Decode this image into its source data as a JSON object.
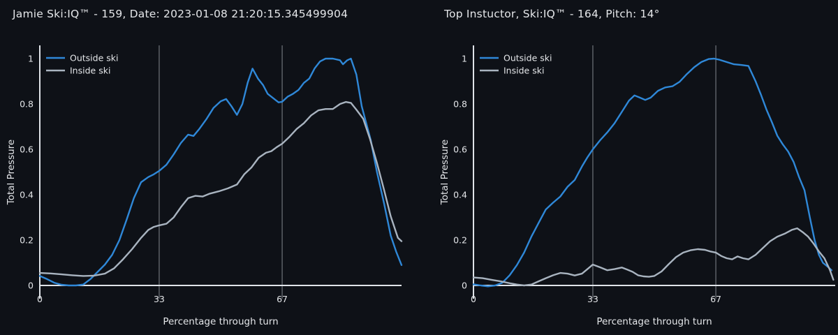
{
  "page": {
    "background": "#0e1117"
  },
  "colors": {
    "outside_ski": "#2f88d8",
    "inside_ski": "#a9b4c0",
    "axis_line": "#dfe3e8",
    "gridline": "#70747b",
    "label_text": "#e4e6e9"
  },
  "chart_data": [
    {
      "type": "line",
      "title": "Jamie Ski:IQ™ - 159, Date: 2023-01-08 21:20:15.345499904",
      "xlabel": "Percentage through turn",
      "ylabel": "Total Pressure",
      "xlim": [
        0,
        100
      ],
      "ylim": [
        0,
        1.06
      ],
      "grid": "vertical-only",
      "legend_position": "top-left",
      "xticks": [
        {
          "value": 0,
          "label": "0"
        },
        {
          "value": 33,
          "label": "33"
        },
        {
          "value": 67,
          "label": "67"
        }
      ],
      "yticks": [
        {
          "value": 0,
          "label": "0"
        },
        {
          "value": 0.2,
          "label": "0.2"
        },
        {
          "value": 0.4,
          "label": "0.4"
        },
        {
          "value": 0.6,
          "label": "0.6"
        },
        {
          "value": 0.8,
          "label": "0.8"
        },
        {
          "value": 1,
          "label": "1"
        }
      ],
      "series": [
        {
          "name": "Outside ski",
          "color": "#2f88d8",
          "x": [
            0,
            2,
            4,
            6,
            8,
            10,
            12,
            14,
            16,
            18,
            20,
            22,
            24,
            26,
            28,
            30,
            31.5,
            33,
            35,
            37,
            39,
            41,
            42.5,
            44,
            46,
            48,
            50,
            51.5,
            53,
            54.5,
            56,
            57.5,
            58.8,
            60.3,
            61.7,
            63,
            64.5,
            66,
            67,
            68.5,
            70,
            71.5,
            73,
            74.5,
            76,
            77.5,
            79,
            81,
            83,
            83.8,
            85,
            86,
            87.5,
            89,
            90.5,
            91.5,
            93.2,
            95.2,
            97,
            98.5,
            100
          ],
          "y": [
            0.042,
            0.028,
            0.012,
            0.003,
            0,
            0,
            0.004,
            0.028,
            0.06,
            0.092,
            0.135,
            0.2,
            0.29,
            0.385,
            0.455,
            0.478,
            0.49,
            0.505,
            0.532,
            0.578,
            0.628,
            0.665,
            0.659,
            0.688,
            0.732,
            0.782,
            0.812,
            0.822,
            0.79,
            0.752,
            0.8,
            0.895,
            0.956,
            0.912,
            0.884,
            0.845,
            0.826,
            0.807,
            0.81,
            0.832,
            0.845,
            0.862,
            0.893,
            0.912,
            0.958,
            0.988,
            1,
            1,
            0.993,
            0.975,
            0.993,
            1,
            0.93,
            0.79,
            0.7,
            0.64,
            0.5,
            0.36,
            0.22,
            0.15,
            0.09
          ]
        },
        {
          "name": "Inside ski",
          "color": "#a9b4c0",
          "x": [
            0,
            3,
            6,
            9,
            12,
            15,
            18,
            20.5,
            23,
            25.5,
            28,
            30,
            31.5,
            33,
            35,
            37,
            39,
            41,
            43,
            45,
            47,
            49.5,
            52,
            54.5,
            56.5,
            58.5,
            60.5,
            62.5,
            64,
            65.5,
            67,
            69,
            71,
            73,
            75,
            77,
            79,
            81,
            83,
            84.6,
            86,
            87.5,
            89.4,
            91.3,
            93.2,
            95.2,
            97,
            99,
            100
          ],
          "y": [
            0.055,
            0.053,
            0.049,
            0.045,
            0.042,
            0.043,
            0.052,
            0.075,
            0.115,
            0.16,
            0.21,
            0.245,
            0.258,
            0.265,
            0.272,
            0.3,
            0.345,
            0.385,
            0.395,
            0.392,
            0.405,
            0.415,
            0.428,
            0.445,
            0.49,
            0.52,
            0.563,
            0.585,
            0.592,
            0.61,
            0.625,
            0.655,
            0.69,
            0.715,
            0.75,
            0.772,
            0.778,
            0.778,
            0.8,
            0.809,
            0.805,
            0.775,
            0.735,
            0.645,
            0.54,
            0.42,
            0.305,
            0.21,
            0.195
          ]
        }
      ]
    },
    {
      "type": "line",
      "title": "Top Instuctor, Ski:IQ™ - 164, Pitch: 14°",
      "xlabel": "Percentage through turn",
      "ylabel": "Total Pressure",
      "xlim": [
        0,
        100
      ],
      "ylim": [
        0,
        1.06
      ],
      "grid": "vertical-only",
      "legend_position": "top-left",
      "xticks": [
        {
          "value": 0,
          "label": "0"
        },
        {
          "value": 33,
          "label": "33"
        },
        {
          "value": 67,
          "label": "67"
        }
      ],
      "yticks": [
        {
          "value": 0,
          "label": "0"
        },
        {
          "value": 0.2,
          "label": "0.2"
        },
        {
          "value": 0.4,
          "label": "0.4"
        },
        {
          "value": 0.6,
          "label": "0.6"
        },
        {
          "value": 0.8,
          "label": "0.8"
        },
        {
          "value": 1,
          "label": "1"
        }
      ],
      "series": [
        {
          "name": "Outside ski",
          "color": "#2f88d8",
          "x": [
            0,
            2,
            4,
            6,
            8,
            10,
            12,
            14,
            16,
            18,
            20,
            22,
            24,
            26,
            28,
            30,
            31.5,
            33,
            35,
            37,
            39,
            41,
            43,
            44.5,
            46,
            47.5,
            49,
            51,
            53,
            55,
            57,
            59,
            61,
            63,
            65,
            66.5,
            68,
            70,
            72,
            74,
            76,
            78,
            79.5,
            81,
            82.5,
            84,
            85.5,
            87,
            88.5,
            90,
            91.5,
            93,
            94.3,
            95.5,
            96.6,
            98,
            99
          ],
          "y": [
            0.005,
            0,
            -0.004,
            0,
            0.012,
            0.045,
            0.09,
            0.145,
            0.215,
            0.275,
            0.335,
            0.365,
            0.392,
            0.435,
            0.465,
            0.525,
            0.565,
            0.6,
            0.64,
            0.675,
            0.715,
            0.765,
            0.815,
            0.838,
            0.828,
            0.818,
            0.828,
            0.858,
            0.873,
            0.878,
            0.898,
            0.932,
            0.962,
            0.985,
            0.998,
            1,
            0.995,
            0.985,
            0.975,
            0.972,
            0.968,
            0.9,
            0.84,
            0.775,
            0.72,
            0.66,
            0.622,
            0.59,
            0.545,
            0.478,
            0.42,
            0.3,
            0.2,
            0.135,
            0.1,
            0.082,
            0.067
          ]
        },
        {
          "name": "Inside ski",
          "color": "#a9b4c0",
          "x": [
            0,
            2.5,
            5,
            7.5,
            10,
            12,
            14,
            16,
            18,
            20,
            22,
            24,
            26,
            28,
            30,
            31.5,
            33,
            35,
            37,
            39,
            41,
            42.5,
            44,
            45.5,
            47,
            48.5,
            50,
            52,
            54,
            56,
            58,
            60,
            62,
            64,
            65.5,
            67,
            68.5,
            70,
            71.5,
            73,
            74.5,
            76,
            78,
            80,
            82,
            84,
            86,
            88,
            89.5,
            91,
            92.5,
            94,
            95.5,
            97,
            98.5,
            99.5
          ],
          "y": [
            0.035,
            0.032,
            0.025,
            0.018,
            0.01,
            0.004,
            0,
            0.004,
            0.018,
            0.032,
            0.045,
            0.055,
            0.052,
            0.044,
            0.052,
            0.072,
            0.092,
            0.08,
            0.067,
            0.072,
            0.079,
            0.07,
            0.06,
            0.045,
            0.04,
            0.038,
            0.042,
            0.062,
            0.094,
            0.125,
            0.145,
            0.155,
            0.16,
            0.157,
            0.15,
            0.145,
            0.13,
            0.12,
            0.115,
            0.128,
            0.12,
            0.115,
            0.135,
            0.165,
            0.195,
            0.215,
            0.228,
            0.245,
            0.252,
            0.235,
            0.215,
            0.185,
            0.15,
            0.12,
            0.07,
            0.025
          ]
        }
      ]
    }
  ]
}
